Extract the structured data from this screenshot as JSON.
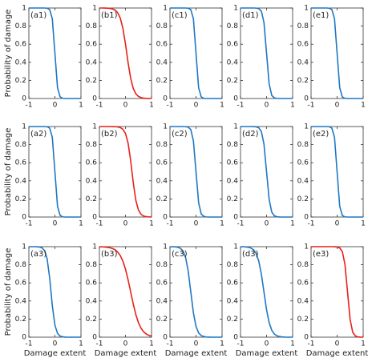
{
  "chart_data": [
    {
      "type": "line",
      "label": "(a1)",
      "ylabel": "Probability of damage",
      "color": "#1f77c4",
      "x": [
        -1,
        -0.9,
        -0.8,
        -0.7,
        -0.6,
        -0.5,
        -0.4,
        -0.3,
        -0.2,
        -0.1,
        0,
        0.1,
        0.2,
        0.3,
        0.4,
        0.5,
        0.6,
        0.7,
        0.8,
        0.9,
        1
      ],
      "values": [
        1,
        1,
        1,
        1,
        1,
        1,
        1,
        0.998,
        0.982,
        0.881,
        0.5,
        0.119,
        0.018,
        0.002,
        0,
        0,
        0,
        0,
        0,
        0,
        0
      ],
      "xlim": [
        -1,
        1
      ],
      "ylim": [
        0,
        1
      ],
      "xticks": [
        -1,
        0,
        1
      ],
      "yticks": [
        0,
        0.2,
        0.4,
        0.6,
        0.8,
        1
      ]
    },
    {
      "type": "line",
      "label": "(b1)",
      "color": "#e8211a",
      "x": [
        -1,
        -0.9,
        -0.8,
        -0.7,
        -0.6,
        -0.5,
        -0.4,
        -0.3,
        -0.2,
        -0.1,
        0,
        0.1,
        0.2,
        0.3,
        0.4,
        0.5,
        0.6,
        0.7,
        0.8,
        0.9,
        1
      ],
      "values": [
        1,
        1,
        0.999,
        0.998,
        0.996,
        0.99,
        0.977,
        0.949,
        0.889,
        0.777,
        0.603,
        0.397,
        0.223,
        0.111,
        0.051,
        0.023,
        0.01,
        0.004,
        0.002,
        0.001,
        0
      ],
      "xlim": [
        -1,
        1
      ],
      "ylim": [
        0,
        1
      ],
      "xticks": [
        -1,
        0,
        1
      ],
      "yticks": [
        0,
        0.2,
        0.4,
        0.6,
        0.8,
        1
      ]
    },
    {
      "type": "line",
      "label": "(c1)",
      "color": "#1f77c4",
      "x": [
        -1,
        -0.9,
        -0.8,
        -0.7,
        -0.6,
        -0.5,
        -0.4,
        -0.3,
        -0.2,
        -0.1,
        0,
        0.1,
        0.2,
        0.3,
        0.4,
        0.5,
        0.6,
        0.7,
        0.8,
        0.9,
        1
      ],
      "values": [
        1,
        1,
        1,
        1,
        1,
        1,
        1,
        0.998,
        0.982,
        0.881,
        0.5,
        0.119,
        0.018,
        0.002,
        0,
        0,
        0,
        0,
        0,
        0,
        0
      ],
      "xlim": [
        -1,
        1
      ],
      "ylim": [
        0,
        1
      ],
      "xticks": [
        -1,
        0,
        1
      ],
      "yticks": [
        0,
        0.2,
        0.4,
        0.6,
        0.8,
        1
      ]
    },
    {
      "type": "line",
      "label": "(d1)",
      "color": "#1f77c4",
      "x": [
        -1,
        -0.9,
        -0.8,
        -0.7,
        -0.6,
        -0.5,
        -0.4,
        -0.3,
        -0.2,
        -0.1,
        0,
        0.1,
        0.2,
        0.3,
        0.4,
        0.5,
        0.6,
        0.7,
        0.8,
        0.9,
        1
      ],
      "values": [
        1,
        1,
        1,
        1,
        1,
        1,
        0.999,
        0.993,
        0.966,
        0.841,
        0.5,
        0.159,
        0.034,
        0.007,
        0.001,
        0,
        0,
        0,
        0,
        0,
        0
      ],
      "xlim": [
        -1,
        1
      ],
      "ylim": [
        0,
        1
      ],
      "xticks": [
        -1,
        0,
        1
      ],
      "yticks": [
        0,
        0.2,
        0.4,
        0.6,
        0.8,
        1
      ]
    },
    {
      "type": "line",
      "label": "(e1)",
      "color": "#1f77c4",
      "x": [
        -1,
        -0.9,
        -0.8,
        -0.7,
        -0.6,
        -0.5,
        -0.4,
        -0.3,
        -0.2,
        -0.1,
        0,
        0.1,
        0.2,
        0.3,
        0.4,
        0.5,
        0.6,
        0.7,
        0.8,
        0.9,
        1
      ],
      "values": [
        1,
        1,
        1,
        1,
        1,
        1,
        1,
        0.998,
        0.982,
        0.881,
        0.5,
        0.119,
        0.018,
        0.002,
        0,
        0,
        0,
        0,
        0,
        0,
        0
      ],
      "xlim": [
        -1,
        1
      ],
      "ylim": [
        0,
        1
      ],
      "xticks": [
        -1,
        0,
        1
      ],
      "yticks": [
        0,
        0.2,
        0.4,
        0.6,
        0.8,
        1
      ]
    },
    {
      "type": "line",
      "label": "(a2)",
      "ylabel": "Probability of damage",
      "color": "#1f77c4",
      "x": [
        -1,
        -0.9,
        -0.8,
        -0.7,
        -0.6,
        -0.5,
        -0.4,
        -0.3,
        -0.2,
        -0.1,
        0,
        0.1,
        0.2,
        0.3,
        0.4,
        0.5,
        0.6,
        0.7,
        0.8,
        0.9,
        1
      ],
      "values": [
        1,
        1,
        1,
        1,
        1,
        1,
        1,
        0.998,
        0.982,
        0.881,
        0.5,
        0.119,
        0.018,
        0.002,
        0,
        0,
        0,
        0,
        0,
        0,
        0
      ],
      "xlim": [
        -1,
        1
      ],
      "ylim": [
        0,
        1
      ],
      "xticks": [
        -1,
        0,
        1
      ],
      "yticks": [
        0,
        0.2,
        0.4,
        0.6,
        0.8,
        1
      ]
    },
    {
      "type": "line",
      "label": "(b2)",
      "color": "#e8211a",
      "x": [
        -1,
        -0.9,
        -0.8,
        -0.7,
        -0.6,
        -0.5,
        -0.4,
        -0.3,
        -0.2,
        -0.1,
        0,
        0.1,
        0.2,
        0.3,
        0.4,
        0.5,
        0.6,
        0.7,
        0.8,
        0.9,
        1
      ],
      "values": [
        1,
        1,
        1,
        1,
        1,
        0.999,
        0.998,
        0.996,
        0.989,
        0.971,
        0.924,
        0.818,
        0.622,
        0.378,
        0.182,
        0.076,
        0.029,
        0.011,
        0.004,
        0.002,
        0.001
      ],
      "xlim": [
        -1,
        1
      ],
      "ylim": [
        0,
        1
      ],
      "xticks": [
        -1,
        0,
        1
      ],
      "yticks": [
        0,
        0.2,
        0.4,
        0.6,
        0.8,
        1
      ]
    },
    {
      "type": "line",
      "label": "(c2)",
      "color": "#1f77c4",
      "x": [
        -1,
        -0.9,
        -0.8,
        -0.7,
        -0.6,
        -0.5,
        -0.4,
        -0.3,
        -0.2,
        -0.1,
        0,
        0.1,
        0.2,
        0.3,
        0.4,
        0.5,
        0.6,
        0.7,
        0.8,
        0.9,
        1
      ],
      "values": [
        1,
        1,
        1,
        1,
        1,
        1,
        0.999,
        0.993,
        0.966,
        0.841,
        0.5,
        0.159,
        0.034,
        0.007,
        0.001,
        0,
        0,
        0,
        0,
        0,
        0
      ],
      "xlim": [
        -1,
        1
      ],
      "ylim": [
        0,
        1
      ],
      "xticks": [
        -1,
        0,
        1
      ],
      "yticks": [
        0,
        0.2,
        0.4,
        0.6,
        0.8,
        1
      ]
    },
    {
      "type": "line",
      "label": "(d2)",
      "color": "#1f77c4",
      "x": [
        -1,
        -0.9,
        -0.8,
        -0.7,
        -0.6,
        -0.5,
        -0.4,
        -0.3,
        -0.2,
        -0.1,
        0,
        0.1,
        0.2,
        0.3,
        0.4,
        0.5,
        0.6,
        0.7,
        0.8,
        0.9,
        1
      ],
      "values": [
        1,
        1,
        1,
        1,
        1,
        0.999,
        0.997,
        0.986,
        0.946,
        0.807,
        0.5,
        0.193,
        0.054,
        0.014,
        0.003,
        0.001,
        0,
        0,
        0,
        0,
        0
      ],
      "xlim": [
        -1,
        1
      ],
      "ylim": [
        0,
        1
      ],
      "xticks": [
        -1,
        0,
        1
      ],
      "yticks": [
        0,
        0.2,
        0.4,
        0.6,
        0.8,
        1
      ]
    },
    {
      "type": "line",
      "label": "(e2)",
      "color": "#1f77c4",
      "x": [
        -1,
        -0.9,
        -0.8,
        -0.7,
        -0.6,
        -0.5,
        -0.4,
        -0.3,
        -0.2,
        -0.1,
        0,
        0.1,
        0.2,
        0.3,
        0.4,
        0.5,
        0.6,
        0.7,
        0.8,
        0.9,
        1
      ],
      "values": [
        1,
        1,
        1,
        1,
        1,
        1,
        1,
        0.998,
        0.982,
        0.881,
        0.5,
        0.119,
        0.018,
        0.002,
        0,
        0,
        0,
        0,
        0,
        0,
        0
      ],
      "xlim": [
        -1,
        1
      ],
      "ylim": [
        0,
        1
      ],
      "xticks": [
        -1,
        0,
        1
      ],
      "yticks": [
        0,
        0.2,
        0.4,
        0.6,
        0.8,
        1
      ]
    },
    {
      "type": "line",
      "label": "(a3)",
      "ylabel": "Probability of damage",
      "xlabel": "Damage extent",
      "color": "#1f77c4",
      "x": [
        -1,
        -0.9,
        -0.8,
        -0.7,
        -0.6,
        -0.5,
        -0.4,
        -0.3,
        -0.2,
        -0.1,
        0,
        0.1,
        0.2,
        0.3,
        0.4,
        0.5,
        0.6,
        0.7,
        0.8,
        0.9,
        1
      ],
      "values": [
        1,
        1,
        1,
        0.999,
        0.996,
        0.988,
        0.958,
        0.867,
        0.651,
        0.349,
        0.133,
        0.042,
        0.012,
        0.004,
        0.001,
        0,
        0,
        0,
        0,
        0,
        0
      ],
      "xlim": [
        -1,
        1
      ],
      "ylim": [
        0,
        1
      ],
      "xticks": [
        -1,
        0,
        1
      ],
      "yticks": [
        0,
        0.2,
        0.4,
        0.6,
        0.8,
        1
      ]
    },
    {
      "type": "line",
      "label": "(b3)",
      "xlabel": "Damage extent",
      "color": "#e8211a",
      "x": [
        -1,
        -0.9,
        -0.8,
        -0.7,
        -0.6,
        -0.5,
        -0.4,
        -0.3,
        -0.2,
        -0.1,
        0,
        0.1,
        0.2,
        0.3,
        0.4,
        0.5,
        0.6,
        0.7,
        0.8,
        0.9,
        1
      ],
      "values": [
        0.999,
        0.998,
        0.996,
        0.993,
        0.988,
        0.98,
        0.966,
        0.941,
        0.902,
        0.841,
        0.752,
        0.635,
        0.5,
        0.365,
        0.248,
        0.159,
        0.098,
        0.059,
        0.034,
        0.02,
        0.012
      ],
      "xlim": [
        -1,
        1
      ],
      "ylim": [
        0,
        1
      ],
      "xticks": [
        -1,
        0,
        1
      ],
      "yticks": [
        0,
        0.2,
        0.4,
        0.6,
        0.8,
        1
      ]
    },
    {
      "type": "line",
      "label": "(c3)",
      "xlabel": "Damage extent",
      "color": "#1f77c4",
      "x": [
        -1,
        -0.9,
        -0.8,
        -0.7,
        -0.6,
        -0.5,
        -0.4,
        -0.3,
        -0.2,
        -0.1,
        0,
        0.1,
        0.2,
        0.3,
        0.4,
        0.5,
        0.6,
        0.7,
        0.8,
        0.9,
        1
      ],
      "values": [
        1,
        0.999,
        0.998,
        0.993,
        0.982,
        0.953,
        0.881,
        0.731,
        0.5,
        0.269,
        0.119,
        0.047,
        0.018,
        0.007,
        0.002,
        0.001,
        0,
        0,
        0,
        0,
        0
      ],
      "xlim": [
        -1,
        1
      ],
      "ylim": [
        0,
        1
      ],
      "xticks": [
        -1,
        0,
        1
      ],
      "yticks": [
        0,
        0.2,
        0.4,
        0.6,
        0.8,
        1
      ]
    },
    {
      "type": "line",
      "label": "(d3)",
      "xlabel": "Damage extent",
      "color": "#1f77c4",
      "x": [
        -1,
        -0.9,
        -0.8,
        -0.7,
        -0.6,
        -0.5,
        -0.4,
        -0.3,
        -0.2,
        -0.1,
        0,
        0.1,
        0.2,
        0.3,
        0.4,
        0.5,
        0.6,
        0.7,
        0.8,
        0.9,
        1
      ],
      "values": [
        1,
        0.999,
        0.997,
        0.993,
        0.985,
        0.966,
        0.924,
        0.841,
        0.697,
        0.5,
        0.303,
        0.159,
        0.076,
        0.034,
        0.015,
        0.007,
        0.003,
        0.001,
        0,
        0,
        0
      ],
      "xlim": [
        -1,
        1
      ],
      "ylim": [
        0,
        1
      ],
      "xticks": [
        -1,
        0,
        1
      ],
      "yticks": [
        0,
        0.2,
        0.4,
        0.6,
        0.8,
        1
      ]
    },
    {
      "type": "line",
      "label": "(e3)",
      "xlabel": "Damage extent",
      "color": "#e8211a",
      "x": [
        -1,
        -0.9,
        -0.8,
        -0.7,
        -0.6,
        -0.5,
        -0.4,
        -0.3,
        -0.2,
        -0.1,
        0,
        0.1,
        0.2,
        0.3,
        0.4,
        0.5,
        0.6,
        0.7,
        0.8,
        0.9,
        1
      ],
      "values": [
        1,
        1,
        1,
        1,
        1,
        1,
        1,
        1,
        1,
        0.999,
        0.997,
        0.986,
        0.946,
        0.807,
        0.5,
        0.193,
        0.054,
        0.014,
        0.003,
        0.001,
        0
      ],
      "xlim": [
        -1,
        1
      ],
      "ylim": [
        0,
        1
      ],
      "xticks": [
        -1,
        0,
        1
      ],
      "yticks": [
        0,
        0.2,
        0.4,
        0.6,
        0.8,
        1
      ]
    }
  ]
}
